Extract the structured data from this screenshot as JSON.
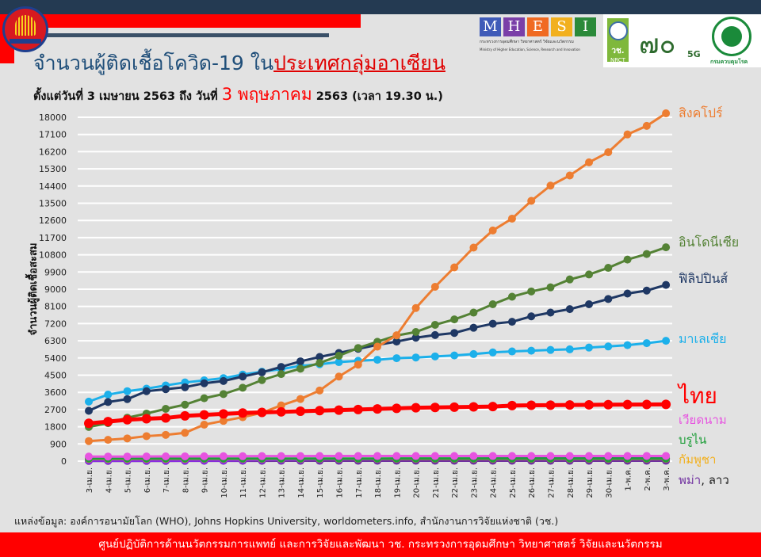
{
  "header": {
    "title_part1": "จำนวนผู้ติดเชื้อโควิด-19 ใน",
    "title_part2": "ประเทศกลุ่มอาเซียน",
    "subtitle_part1": "ตั้งแต่วันที่ 3 เมษายน 2563 ถึง วันที่ ",
    "subtitle_highlight": "3 พฤษภาคม",
    "subtitle_part2": " 2563 (เวลา 19.30 น.)"
  },
  "logos": {
    "mhesi_letters": [
      "M",
      "H",
      "E",
      "S",
      "I"
    ],
    "mhesi_colors": [
      "#3f5bb8",
      "#7a3fa8",
      "#f06a22",
      "#f2b01e",
      "#2b8a3a"
    ],
    "mhesi_text_th": "กระทรวงการอุดมศึกษา วิทยาศาสตร์ วิจัยและนวัตกรรม",
    "mhesi_text_en": "Ministry of Higher Education, Science, Research and Innovation",
    "nrct_th": "วช.",
    "nrct_en": "NRCT",
    "seventy": "๗๐",
    "fiveg": "5G",
    "ddc": "กรมควบคุมโรค"
  },
  "chart_data": {
    "type": "line",
    "title": "จำนวนผู้ติดเชื้อโควิด-19 ในประเทศกลุ่มอาเซียน",
    "ylabel": "จำนวนผู้ติดเชื้อสะสม",
    "xlabel": "",
    "ylim": [
      0,
      18000
    ],
    "yticks": [
      0,
      900,
      1800,
      2700,
      3600,
      4500,
      5400,
      6300,
      7200,
      8100,
      9000,
      9900,
      10800,
      11700,
      12600,
      13500,
      14400,
      15300,
      16200,
      17100,
      18000
    ],
    "grid": true,
    "legend": "right (labels at line ends)",
    "categories": [
      "3-เม.ย.",
      "4-เม.ย.",
      "5-เม.ย.",
      "6-เม.ย.",
      "7-เม.ย.",
      "8-เม.ย.",
      "9-เม.ย.",
      "10-เม.ย.",
      "11-เม.ย.",
      "12-เม.ย.",
      "13-เม.ย.",
      "14-เม.ย.",
      "15-เม.ย.",
      "16-เม.ย.",
      "17-เม.ย.",
      "18-เม.ย.",
      "19-เม.ย.",
      "20-เม.ย.",
      "21-เม.ย.",
      "22-เม.ย.",
      "23-เม.ย.",
      "24-เม.ย.",
      "25-เม.ย.",
      "26-เม.ย.",
      "27-เม.ย.",
      "28-เม.ย.",
      "29-เม.ย.",
      "30-เม.ย.",
      "1-พ.ค.",
      "2-พ.ค.",
      "3-พ.ค."
    ],
    "series": [
      {
        "name": "สิงคโปร์",
        "color": "#ed7d31",
        "values": [
          1049,
          1114,
          1189,
          1309,
          1375,
          1481,
          1910,
          2108,
          2299,
          2532,
          2918,
          3252,
          3699,
          4427,
          5050,
          5992,
          6588,
          8014,
          9125,
          10141,
          11178,
          12075,
          12693,
          13624,
          14423,
          14951,
          15641,
          16169,
          17101,
          17548,
          18205
        ]
      },
      {
        "name": "อินโดนีเซีย",
        "color": "#548235",
        "values": [
          1790,
          1986,
          2273,
          2491,
          2738,
          2956,
          3293,
          3512,
          3842,
          4241,
          4557,
          4839,
          5136,
          5516,
          5923,
          6248,
          6575,
          6760,
          7135,
          7418,
          7775,
          8211,
          8607,
          8882,
          9096,
          9511,
          9771,
          10118,
          10551,
          10843,
          11192
        ]
      },
      {
        "name": "ฟิลิปปินส์",
        "color": "#1f3864",
        "values": [
          2633,
          3094,
          3246,
          3660,
          3764,
          3870,
          4076,
          4195,
          4428,
          4648,
          4932,
          5223,
          5453,
          5660,
          5878,
          6087,
          6259,
          6459,
          6599,
          6710,
          6981,
          7192,
          7294,
          7579,
          7777,
          7958,
          8212,
          8488,
          8772,
          8928,
          9223
        ]
      },
      {
        "name": "มาเลเซีย",
        "color": "#1cb0ea",
        "values": [
          3116,
          3483,
          3662,
          3793,
          3963,
          4119,
          4228,
          4346,
          4530,
          4683,
          4817,
          4987,
          5072,
          5182,
          5251,
          5305,
          5389,
          5425,
          5482,
          5532,
          5603,
          5691,
          5742,
          5780,
          5820,
          5851,
          5945,
          6002,
          6071,
          6176,
          6298
        ]
      },
      {
        "name": "ไทย",
        "color": "#ff0000",
        "values": [
          1978,
          2067,
          2169,
          2220,
          2258,
          2369,
          2423,
          2473,
          2518,
          2551,
          2579,
          2613,
          2643,
          2672,
          2700,
          2733,
          2765,
          2792,
          2811,
          2826,
          2839,
          2854,
          2907,
          2922,
          2931,
          2938,
          2947,
          2954,
          2960,
          2966,
          2969
        ]
      },
      {
        "name": "เวียดนาม",
        "color": "#e754e0",
        "values": [
          237,
          240,
          241,
          245,
          249,
          251,
          255,
          257,
          258,
          262,
          265,
          266,
          267,
          268,
          268,
          268,
          268,
          268,
          268,
          268,
          268,
          268,
          270,
          270,
          270,
          270,
          270,
          270,
          270,
          271,
          271
        ]
      },
      {
        "name": "บรูไน",
        "color": "#1f9e3a",
        "values": [
          135,
          135,
          135,
          135,
          136,
          136,
          136,
          136,
          136,
          136,
          136,
          136,
          136,
          137,
          137,
          137,
          138,
          138,
          138,
          138,
          138,
          138,
          138,
          138,
          138,
          138,
          138,
          138,
          138,
          138,
          138
        ]
      },
      {
        "name": "กัมพูชา",
        "color": "#f2b01e",
        "values": [
          114,
          114,
          115,
          117,
          117,
          117,
          119,
          119,
          120,
          120,
          122,
          122,
          122,
          122,
          122,
          122,
          122,
          122,
          122,
          122,
          122,
          122,
          122,
          122,
          122,
          122,
          122,
          122,
          122,
          122,
          122
        ]
      },
      {
        "name": "พม่า",
        "color": "#8a2be2",
        "values": [
          20,
          21,
          22,
          22,
          22,
          23,
          27,
          28,
          41,
          62,
          74,
          85,
          98,
          98,
          111,
          111,
          119,
          121,
          123,
          127,
          131,
          139,
          139,
          144,
          146,
          146,
          150,
          150,
          151,
          155,
          161
        ]
      },
      {
        "name": "ลาว",
        "color": "#7030a0",
        "values": [
          10,
          10,
          11,
          12,
          12,
          14,
          15,
          16,
          16,
          16,
          19,
          19,
          19,
          19,
          19,
          19,
          19,
          19,
          19,
          19,
          19,
          19,
          19,
          19,
          19,
          19,
          19,
          19,
          19,
          19,
          19
        ]
      }
    ]
  },
  "labels": {
    "singapore": "สิงคโปร์",
    "indonesia": "อินโดนีเซีย",
    "philippines": "ฟิลิปปินส์",
    "malaysia": "มาเลเซีย",
    "thailand": "ไทย",
    "vietnam": "เวียดนาม",
    "brunei": "บรูไน",
    "cambodia": "กัมพูชา",
    "myanmar": "พม่า",
    "laos": ", ลาว"
  },
  "source": "แหล่งข้อมูล: องค์การอนามัยโลก (WHO), Johns Hopkins University, worldometers.info, สำนักงานการวิจัยแห่งชาติ (วช.)",
  "footer": "ศูนย์ปฏิบัติการด้านนวัตกรรมการแพทย์ และการวิจัยและพัฒนา  วช.   กระทรวงการอุดมศึกษา วิทยาศาสตร์ วิจัยและนวัตกรรม"
}
